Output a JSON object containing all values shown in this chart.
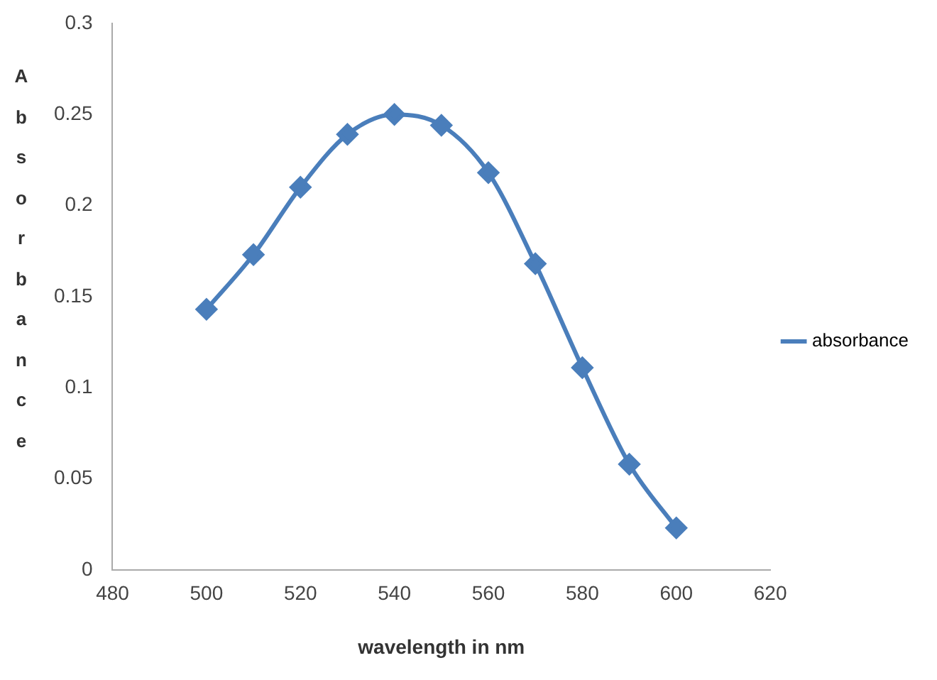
{
  "chart_data": {
    "type": "line",
    "xlabel": "wavelength in nm",
    "ylabel": "Absorbance",
    "x": [
      500,
      510,
      520,
      530,
      540,
      550,
      560,
      570,
      580,
      590,
      600
    ],
    "series": [
      {
        "name": "absorbance",
        "color": "#4a7ebb",
        "values": [
          0.143,
          0.173,
          0.21,
          0.239,
          0.25,
          0.244,
          0.218,
          0.168,
          0.111,
          0.058,
          0.023
        ]
      }
    ],
    "xlim": [
      480,
      620
    ],
    "xticks": [
      480,
      500,
      520,
      540,
      560,
      580,
      600,
      620
    ],
    "ylim": [
      0,
      0.3
    ],
    "yticks": [
      0,
      0.05,
      0.1,
      0.15,
      0.2,
      0.25,
      0.3
    ],
    "grid": false,
    "legend": "right",
    "marker": "diamond",
    "line_style": "solid"
  }
}
